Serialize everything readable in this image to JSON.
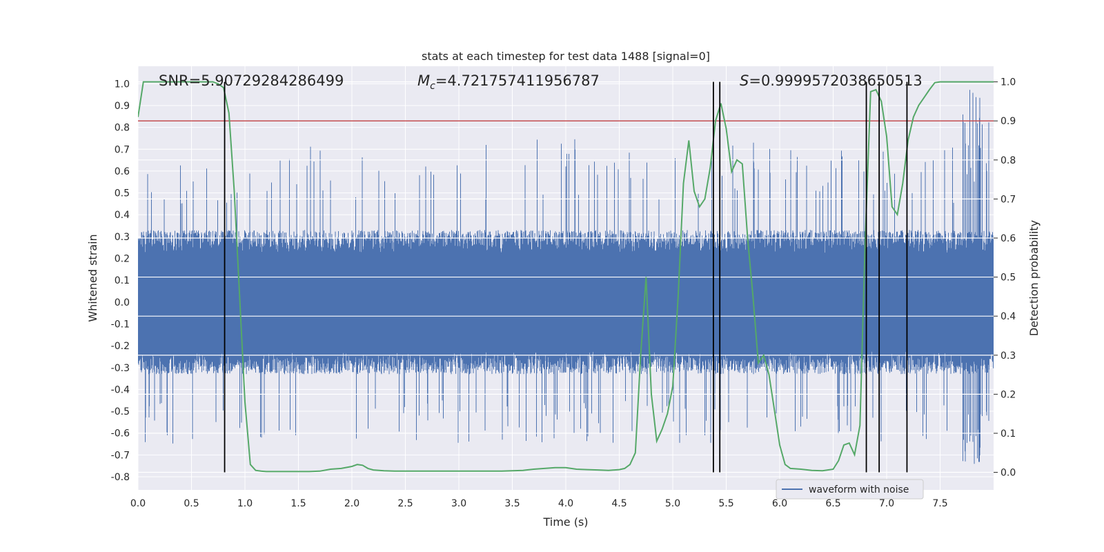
{
  "chart_data": {
    "type": "line",
    "title": "stats at each timestep for test data 1488 [signal=0]",
    "xlabel": "Time (s)",
    "ylabel": "Whitened strain",
    "y2label": "Detection probability",
    "xlim": [
      0.0,
      8.0
    ],
    "ylim": [
      -0.86,
      1.08
    ],
    "y2lim": [
      -0.045,
      1.04
    ],
    "x_ticks": [
      "0.0",
      "0.5",
      "1.0",
      "1.5",
      "2.0",
      "2.5",
      "3.0",
      "3.5",
      "4.0",
      "4.5",
      "5.0",
      "5.5",
      "6.0",
      "6.5",
      "7.0",
      "7.5"
    ],
    "y_ticks": [
      "1.0",
      "0.9",
      "0.8",
      "0.7",
      "0.6",
      "0.5",
      "0.4",
      "0.3",
      "0.2",
      "0.1",
      "0.0",
      "-0.1",
      "-0.2",
      "-0.3",
      "-0.4",
      "-0.5",
      "-0.6",
      "-0.7",
      "-0.8"
    ],
    "y2_ticks": [
      "1.0",
      "0.9",
      "0.8",
      "0.7",
      "0.6",
      "0.5",
      "0.4",
      "0.3",
      "0.2",
      "0.1",
      "0.0"
    ],
    "annotations": {
      "snr": "SNR=5.90729284286499",
      "mc_symbol": "M",
      "mc_sub": "c",
      "mc_value": "=4.721757411956787",
      "s_symbol": "S",
      "s_value": "=0.9999572038650513"
    },
    "legend": {
      "placement": "lower-right",
      "entries": [
        "waveform with noise"
      ]
    },
    "threshold_line": {
      "axis": "y2",
      "value": 0.9,
      "color": "#c44e52"
    },
    "vertical_lines": {
      "x": [
        0.81,
        5.38,
        5.44,
        6.81,
        6.93,
        7.19
      ],
      "color": "#000000"
    },
    "series": [
      {
        "name": "waveform with noise",
        "color": "#4c72b0",
        "axis": "y",
        "kind": "noise-envelope",
        "typical_amplitude": 0.3,
        "peak_amplitude": 1.0
      },
      {
        "color": "#55a868",
        "axis": "y2",
        "x": [
          0.0,
          0.05,
          0.1,
          0.2,
          0.3,
          0.4,
          0.5,
          0.6,
          0.7,
          0.75,
          0.8,
          0.85,
          0.9,
          0.95,
          1.0,
          1.05,
          1.1,
          1.15,
          1.2,
          1.3,
          1.4,
          1.5,
          1.6,
          1.7,
          1.8,
          1.9,
          2.0,
          2.05,
          2.1,
          2.15,
          2.2,
          2.3,
          2.4,
          2.5,
          2.6,
          2.7,
          2.8,
          2.9,
          3.0,
          3.1,
          3.2,
          3.3,
          3.4,
          3.5,
          3.6,
          3.7,
          3.8,
          3.9,
          4.0,
          4.05,
          4.1,
          4.2,
          4.3,
          4.4,
          4.5,
          4.55,
          4.6,
          4.65,
          4.7,
          4.75,
          4.8,
          4.85,
          4.9,
          4.95,
          5.0,
          5.05,
          5.1,
          5.15,
          5.2,
          5.25,
          5.3,
          5.35,
          5.4,
          5.45,
          5.5,
          5.55,
          5.6,
          5.65,
          5.7,
          5.75,
          5.8,
          5.85,
          5.9,
          5.95,
          6.0,
          6.05,
          6.1,
          6.2,
          6.3,
          6.4,
          6.5,
          6.55,
          6.6,
          6.65,
          6.7,
          6.75,
          6.8,
          6.85,
          6.9,
          6.95,
          7.0,
          7.05,
          7.1,
          7.15,
          7.2,
          7.25,
          7.3,
          7.35,
          7.4,
          7.45,
          7.5,
          7.6,
          7.7,
          7.8,
          7.9,
          8.0
        ],
        "values": [
          0.91,
          1.0,
          1.0,
          1.0,
          1.0,
          1.0,
          1.0,
          1.0,
          1.0,
          0.995,
          0.985,
          0.92,
          0.72,
          0.45,
          0.18,
          0.02,
          0.005,
          0.003,
          0.002,
          0.002,
          0.002,
          0.002,
          0.002,
          0.003,
          0.008,
          0.01,
          0.015,
          0.02,
          0.018,
          0.01,
          0.006,
          0.004,
          0.003,
          0.003,
          0.003,
          0.003,
          0.003,
          0.003,
          0.003,
          0.003,
          0.003,
          0.003,
          0.003,
          0.004,
          0.005,
          0.008,
          0.01,
          0.012,
          0.012,
          0.01,
          0.008,
          0.007,
          0.006,
          0.005,
          0.007,
          0.01,
          0.02,
          0.05,
          0.3,
          0.5,
          0.2,
          0.08,
          0.11,
          0.15,
          0.22,
          0.45,
          0.74,
          0.85,
          0.72,
          0.68,
          0.7,
          0.78,
          0.9,
          0.945,
          0.88,
          0.77,
          0.8,
          0.79,
          0.6,
          0.45,
          0.28,
          0.3,
          0.25,
          0.16,
          0.07,
          0.02,
          0.01,
          0.008,
          0.005,
          0.004,
          0.008,
          0.03,
          0.07,
          0.075,
          0.045,
          0.12,
          0.6,
          0.975,
          0.98,
          0.95,
          0.86,
          0.68,
          0.66,
          0.74,
          0.85,
          0.91,
          0.94,
          0.96,
          0.98,
          0.998,
          1.0,
          1.0,
          1.0,
          1.0,
          1.0,
          1.0
        ]
      }
    ],
    "grid": true
  }
}
